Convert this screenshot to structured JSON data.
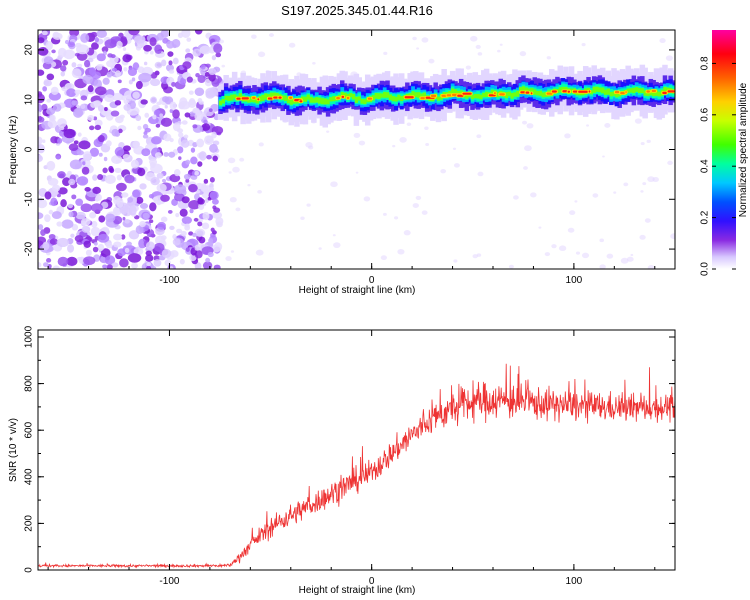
{
  "chart_data": [
    {
      "type": "heatmap",
      "title": "S197.2025.345.01.44.R16",
      "xlabel": "Height of straight line (km)",
      "ylabel": "Frequency (Hz)",
      "xlim": [
        -165,
        150
      ],
      "ylim": [
        -24,
        24
      ],
      "x_ticks": [
        -100,
        0,
        100
      ],
      "y_ticks": [
        -20,
        -10,
        0,
        10,
        20
      ],
      "noise_region_x": [
        -165,
        -75
      ],
      "signal_start_x": -75,
      "carrier_frequency_track": {
        "x": [
          -75,
          -65,
          -55,
          -45,
          -35,
          -25,
          -15,
          -5,
          5,
          15,
          25,
          35,
          45,
          55,
          65,
          75,
          85,
          95,
          105,
          115,
          125,
          135,
          145
        ],
        "freq": [
          10,
          10.3,
          10.4,
          10.5,
          9.8,
          9.9,
          10.6,
          10.2,
          10.4,
          10.8,
          10.5,
          10.9,
          11.0,
          10.9,
          11.3,
          11.5,
          11.4,
          11.7,
          11.8,
          11.5,
          11.6,
          11.7,
          11.6
        ]
      },
      "colorbar": {
        "label": "Normalized spectral amplitude",
        "range": [
          0.0,
          0.93
        ],
        "ticks": [
          "0.0",
          "0.2",
          "0.4",
          "0.6",
          "0.8"
        ]
      }
    },
    {
      "type": "line",
      "xlabel": "Height of straight line (km)",
      "ylabel": "SNR (10 * v/v)",
      "xlim": [
        -165,
        150
      ],
      "ylim": [
        0,
        1030
      ],
      "x_ticks": [
        -100,
        0,
        100
      ],
      "y_ticks": [
        0,
        200,
        400,
        600,
        800,
        1000
      ],
      "series": [
        {
          "name": "SNR",
          "color": "#ee3333",
          "x": [
            -165,
            -120,
            -80,
            -70,
            -65,
            -55,
            -45,
            -30,
            -15,
            0,
            10,
            20,
            30,
            40,
            50,
            60,
            75,
            90,
            110,
            130,
            150
          ],
          "mean": [
            18,
            18,
            18,
            20,
            60,
            150,
            210,
            280,
            350,
            420,
            500,
            580,
            650,
            690,
            720,
            730,
            720,
            710,
            700,
            695,
            700
          ],
          "noise": [
            6,
            6,
            6,
            8,
            25,
            40,
            50,
            55,
            60,
            60,
            60,
            70,
            70,
            80,
            90,
            90,
            80,
            75,
            70,
            65,
            65
          ]
        }
      ]
    }
  ]
}
